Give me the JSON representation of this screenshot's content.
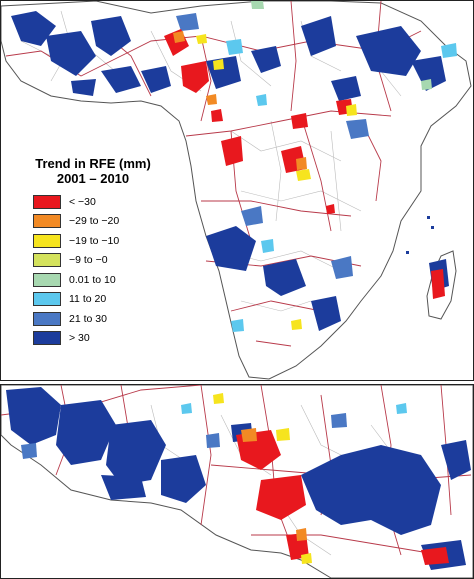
{
  "legend": {
    "title_line1": "Trend in RFE (mm)",
    "title_line2": "2001 – 2010",
    "items": [
      {
        "label": "< −30",
        "color": "#e8181e"
      },
      {
        "label": "−29 to −20",
        "color": "#f28a24"
      },
      {
        "label": "−19 to −10",
        "color": "#f6e41e"
      },
      {
        "label": "−9 to −0",
        "color": "#d4e25c"
      },
      {
        "label": "0.01 to 10",
        "color": "#a7d8b0"
      },
      {
        "label": "11 to 20",
        "color": "#5cc8ee"
      },
      {
        "label": "21 to 30",
        "color": "#4a78c4"
      },
      {
        "label": "> 30",
        "color": "#1c3c9c"
      }
    ]
  },
  "colors": {
    "border": "#b83a4a",
    "admin_border": "#bbbbbb",
    "coast": "#555555"
  }
}
